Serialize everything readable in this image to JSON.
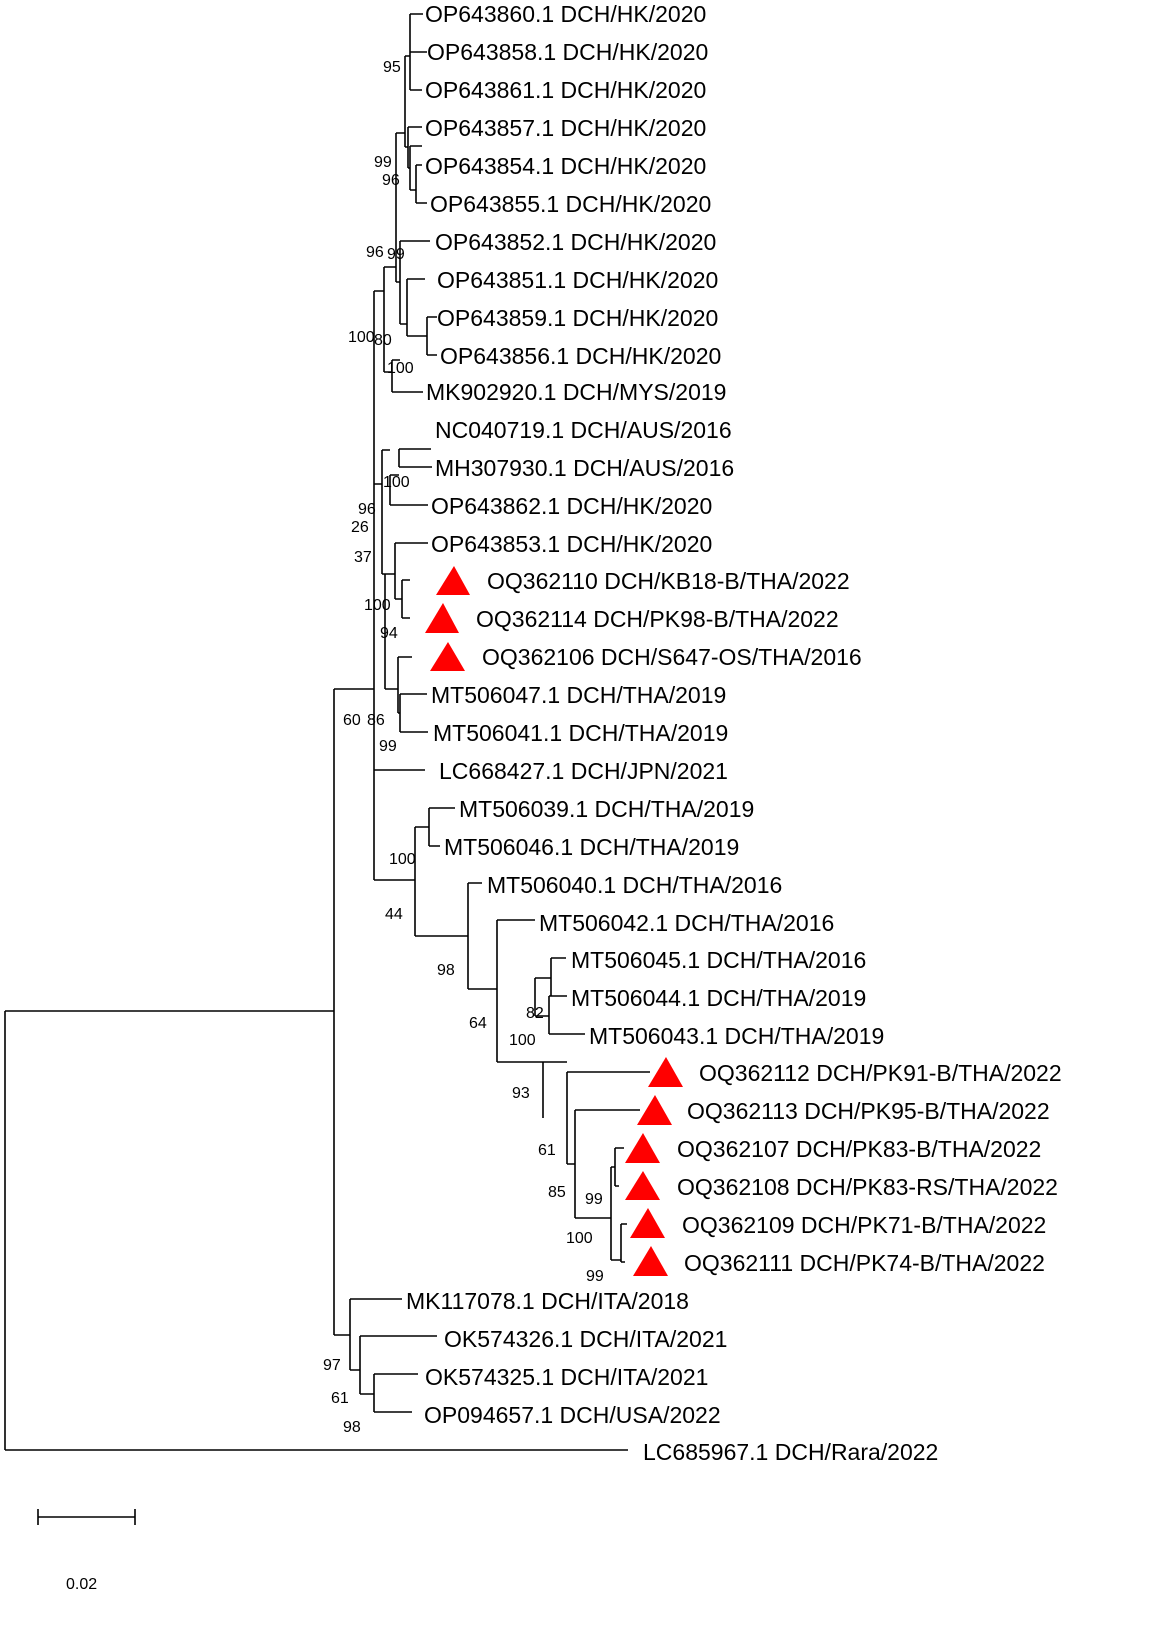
{
  "figure": {
    "type": "phylogenetic-tree",
    "marker_color": "#ff0000",
    "marker_shape": "triangle",
    "scale_bar_label": "0.02",
    "taxa": [
      {
        "label": "OP643860.1 DCH/HK/2020"
      },
      {
        "label": "OP643858.1 DCH/HK/2020"
      },
      {
        "label": "OP643861.1 DCH/HK/2020"
      },
      {
        "label": "OP643857.1 DCH/HK/2020"
      },
      {
        "label": "OP643854.1 DCH/HK/2020"
      },
      {
        "label": "OP643855.1 DCH/HK/2020"
      },
      {
        "label": "OP643852.1 DCH/HK/2020"
      },
      {
        "label": "OP643851.1 DCH/HK/2020"
      },
      {
        "label": "OP643859.1 DCH/HK/2020"
      },
      {
        "label": "OP643856.1 DCH/HK/2020"
      },
      {
        "label": "MK902920.1 DCH/MYS/2019"
      },
      {
        "label": "NC040719.1 DCH/AUS/2016"
      },
      {
        "label": "MH307930.1 DCH/AUS/2016"
      },
      {
        "label": "OP643862.1 DCH/HK/2020"
      },
      {
        "label": "OP643853.1 DCH/HK/2020"
      },
      {
        "label": "OQ362110 DCH/KB18-B/THA/2022",
        "marked": true
      },
      {
        "label": "OQ362114 DCH/PK98-B/THA/2022",
        "marked": true
      },
      {
        "label": "OQ362106 DCH/S647-OS/THA/2016",
        "marked": true
      },
      {
        "label": "MT506047.1 DCH/THA/2019"
      },
      {
        "label": "MT506041.1 DCH/THA/2019"
      },
      {
        "label": "LC668427.1 DCH/JPN/2021"
      },
      {
        "label": "MT506039.1 DCH/THA/2019"
      },
      {
        "label": "MT506046.1 DCH/THA/2019"
      },
      {
        "label": "MT506040.1 DCH/THA/2016"
      },
      {
        "label": "MT506042.1 DCH/THA/2016"
      },
      {
        "label": "MT506045.1 DCH/THA/2016"
      },
      {
        "label": "MT506044.1 DCH/THA/2019"
      },
      {
        "label": "MT506043.1 DCH/THA/2019"
      },
      {
        "label": "OQ362112 DCH/PK91-B/THA/2022",
        "marked": true
      },
      {
        "label": "OQ362113 DCH/PK95-B/THA/2022",
        "marked": true
      },
      {
        "label": "OQ362107 DCH/PK83-B/THA/2022",
        "marked": true
      },
      {
        "label": "OQ362108 DCH/PK83-RS/THA/2022",
        "marked": true
      },
      {
        "label": "OQ362109 DCH/PK71-B/THA/2022",
        "marked": true
      },
      {
        "label": "OQ362111 DCH/PK74-B/THA/2022",
        "marked": true
      },
      {
        "label": "MK117078.1 DCH/ITA/2018"
      },
      {
        "label": "OK574326.1 DCH/ITA/2021"
      },
      {
        "label": "OK574325.1 DCH/ITA/2021"
      },
      {
        "label": "OP094657.1 DCH/USA/2022"
      },
      {
        "label": "LC685967.1 DCH/Rara/2022"
      }
    ],
    "bootstrap_values": [
      "95",
      "99",
      "96",
      "96",
      "99",
      "100",
      "80",
      "100",
      "100",
      "96",
      "26",
      "37",
      "100",
      "94",
      "60",
      "86",
      "99",
      "100",
      "44",
      "98",
      "64",
      "82",
      "100",
      "93",
      "61",
      "85",
      "99",
      "100",
      "99",
      "97",
      "61",
      "98"
    ]
  }
}
